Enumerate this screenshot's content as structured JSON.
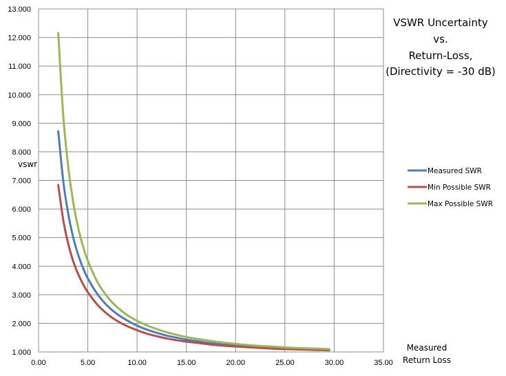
{
  "chart_data": {
    "type": "line",
    "title": [
      "VSWR Uncertainty",
      "vs.",
      "Return-Loss,",
      "(Directivity = -30 dB)"
    ],
    "xlabel": [
      "Measured",
      "Return Loss"
    ],
    "ylabel": "vswr",
    "xlim": [
      0,
      35
    ],
    "ylim": [
      1,
      13
    ],
    "x_ticks": [
      "0.00",
      "5.00",
      "10.00",
      "15.00",
      "20.00",
      "25.00",
      "30.00",
      "35.00"
    ],
    "y_ticks": [
      "1.000",
      "2.000",
      "3.000",
      "4.000",
      "5.000",
      "6.000",
      "7.000",
      "8.000",
      "9.000",
      "10.000",
      "11.000",
      "12.000",
      "13.000"
    ],
    "grid": true,
    "legend_position": "right",
    "directivity_db": -30,
    "x": [
      2.0,
      2.5,
      3.0,
      3.5,
      4.0,
      4.5,
      5.0,
      6.0,
      7.0,
      8.0,
      9.0,
      10.0,
      11.0,
      12.0,
      13.0,
      14.0,
      15.0,
      16.0,
      17.0,
      18.0,
      19.0,
      20.0,
      21.0,
      22.0,
      23.0,
      24.0,
      25.0,
      26.0,
      27.0,
      28.0,
      29.5
    ],
    "series": [
      {
        "name": "Measured SWR",
        "color": "#4a7ebb",
        "values": [
          8.72,
          7.0,
          5.85,
          5.03,
          4.42,
          3.95,
          3.57,
          3.01,
          2.61,
          2.32,
          2.1,
          1.92,
          1.78,
          1.67,
          1.57,
          1.5,
          1.43,
          1.38,
          1.33,
          1.29,
          1.25,
          1.22,
          1.2,
          1.17,
          1.15,
          1.14,
          1.12,
          1.11,
          1.1,
          1.09,
          1.07
        ]
      },
      {
        "name": "Min Possible SWR",
        "color": "#be4b48",
        "values": [
          6.84,
          5.63,
          4.8,
          4.19,
          3.74,
          3.38,
          3.09,
          2.64,
          2.32,
          2.08,
          1.9,
          1.76,
          1.64,
          1.55,
          1.47,
          1.41,
          1.36,
          1.32,
          1.28,
          1.24,
          1.21,
          1.19,
          1.17,
          1.15,
          1.13,
          1.11,
          1.1,
          1.09,
          1.08,
          1.07,
          1.06
        ]
      },
      {
        "name": "Max Possible SWR",
        "color": "#98b954",
        "values": [
          12.16,
          9.3,
          7.51,
          6.27,
          5.38,
          4.71,
          4.19,
          3.43,
          2.92,
          2.56,
          2.29,
          2.09,
          1.93,
          1.8,
          1.69,
          1.6,
          1.52,
          1.46,
          1.41,
          1.36,
          1.32,
          1.28,
          1.25,
          1.22,
          1.2,
          1.18,
          1.16,
          1.14,
          1.13,
          1.12,
          1.1
        ]
      }
    ]
  }
}
